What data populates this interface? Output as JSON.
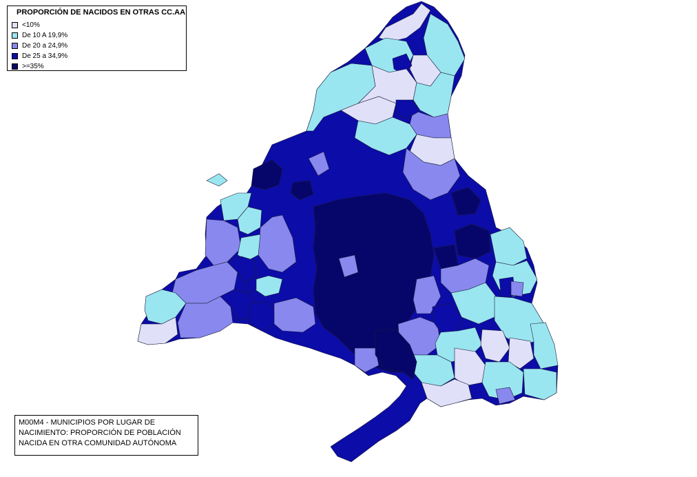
{
  "legend": {
    "title": "PROPORCIÓN DE NACIDOS EN OTRAS CC.AA",
    "items": [
      {
        "label": "<10%",
        "color": "#e0e0f8"
      },
      {
        "label": "De 10 A 19,9%",
        "color": "#99e6f0"
      },
      {
        "label": "De 20 a 24,9%",
        "color": "#8888ee"
      },
      {
        "label": "De 25 a 34,9%",
        "color": "#0c0ca8"
      },
      {
        "label": ">=35%",
        "color": "#06066a"
      }
    ]
  },
  "caption": {
    "line1": "M00M4 - MUNICIPIOS POR LUGAR DE",
    "line2": "NACIMIENTO: PROPORCIÓN DE POBLACIÓN",
    "line3": "NACIDA EN OTRA COMUNIDAD AUTÓNOMA"
  }
}
